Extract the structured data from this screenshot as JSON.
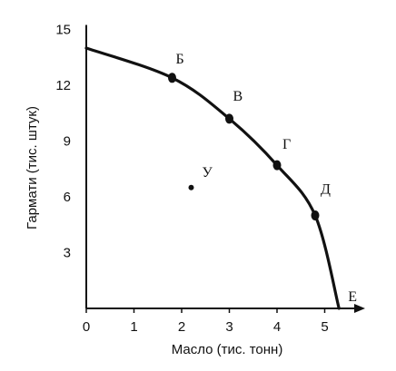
{
  "chart_data": {
    "type": "line",
    "xlabel": "Масло (тис. тонн)",
    "ylabel": "Гармати (тис. штук)",
    "xlim": [
      0,
      5.8
    ],
    "ylim": [
      0,
      15
    ],
    "x_ticks": [
      0,
      1,
      2,
      3,
      4,
      5
    ],
    "x_tick_labels": [
      "0",
      "1",
      "2",
      "3",
      "4",
      "5"
    ],
    "y_ticks": [
      3,
      6,
      9,
      12,
      15
    ],
    "y_tick_labels": [
      "3",
      "6",
      "9",
      "12",
      "15"
    ],
    "grid": false,
    "curve": [
      {
        "x": 0,
        "y": 14
      },
      {
        "x": 1.8,
        "y": 12.4
      },
      {
        "x": 3.0,
        "y": 10.2
      },
      {
        "x": 4.0,
        "y": 7.7
      },
      {
        "x": 4.8,
        "y": 5.0
      },
      {
        "x": 5.3,
        "y": 0
      }
    ],
    "points": [
      {
        "label": "Б",
        "x": 1.8,
        "y": 12.4,
        "marker": true
      },
      {
        "label": "В",
        "x": 3.0,
        "y": 10.2,
        "marker": true
      },
      {
        "label": "Г",
        "x": 4.0,
        "y": 7.7,
        "marker": true
      },
      {
        "label": "Д",
        "x": 4.8,
        "y": 5.0,
        "marker": true
      },
      {
        "label": "Е",
        "x": 5.3,
        "y": 0,
        "marker": false
      },
      {
        "label": "У",
        "x": 2.2,
        "y": 6.5,
        "marker": true
      }
    ]
  }
}
